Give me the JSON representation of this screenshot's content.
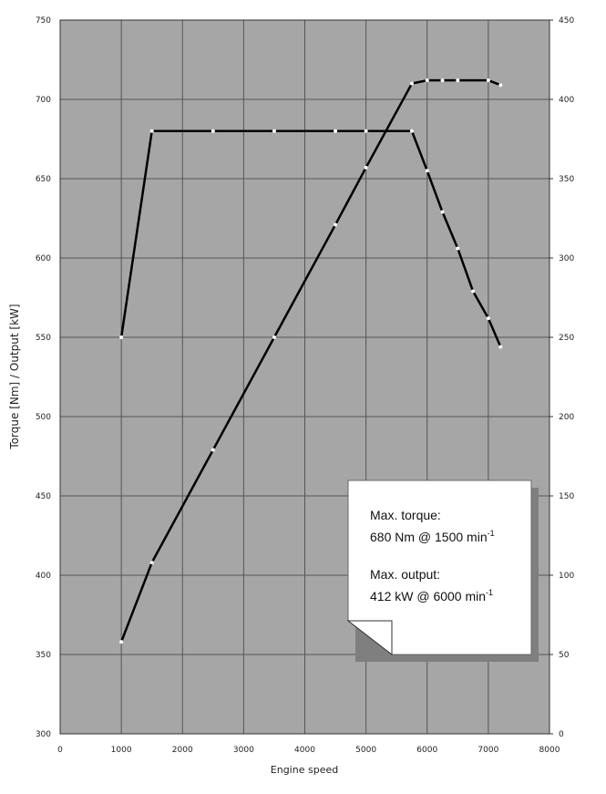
{
  "chart_data": {
    "type": "line",
    "x_label": "Engine speed",
    "y_label": "Torque [Nm] / Output [kW]",
    "xlim": [
      0,
      8000
    ],
    "xticks": [
      0,
      1000,
      2000,
      3000,
      4000,
      5000,
      6000,
      7000,
      8000
    ],
    "ylim": [
      300,
      750
    ],
    "yticks": [
      300,
      350,
      400,
      450,
      500,
      550,
      600,
      650,
      700,
      750
    ],
    "y2lim": [
      0,
      450
    ],
    "y2ticks": [
      0,
      50,
      100,
      150,
      200,
      250,
      300,
      350,
      400,
      450
    ],
    "grid": true,
    "series": [
      {
        "color": "#000000",
        "x": [
          1000,
          1500,
          2500,
          3500,
          4500,
          5000,
          5750,
          6000,
          6250,
          6500,
          6750,
          7000,
          7200
        ],
        "values": [
          550,
          680,
          680,
          680,
          680,
          680,
          680,
          655,
          629,
          606,
          579,
          562,
          544
        ]
      },
      {
        "color": "#000000",
        "axis": "y2",
        "x": [
          1000,
          1500,
          2500,
          3500,
          4500,
          5000,
          5750,
          6000,
          6250,
          6500,
          7000,
          7200
        ],
        "values": [
          58,
          108,
          179,
          250,
          321,
          357,
          410,
          412,
          412,
          412,
          412,
          409
        ]
      }
    ],
    "annotations": [
      {
        "text": "Max. torque:"
      },
      {
        "text": "680 Nm @ 1500 min",
        "sup": "-1"
      },
      {
        "text": "Max. output:"
      },
      {
        "text": "412 kW @ 6000 min",
        "sup": "-1"
      }
    ]
  }
}
